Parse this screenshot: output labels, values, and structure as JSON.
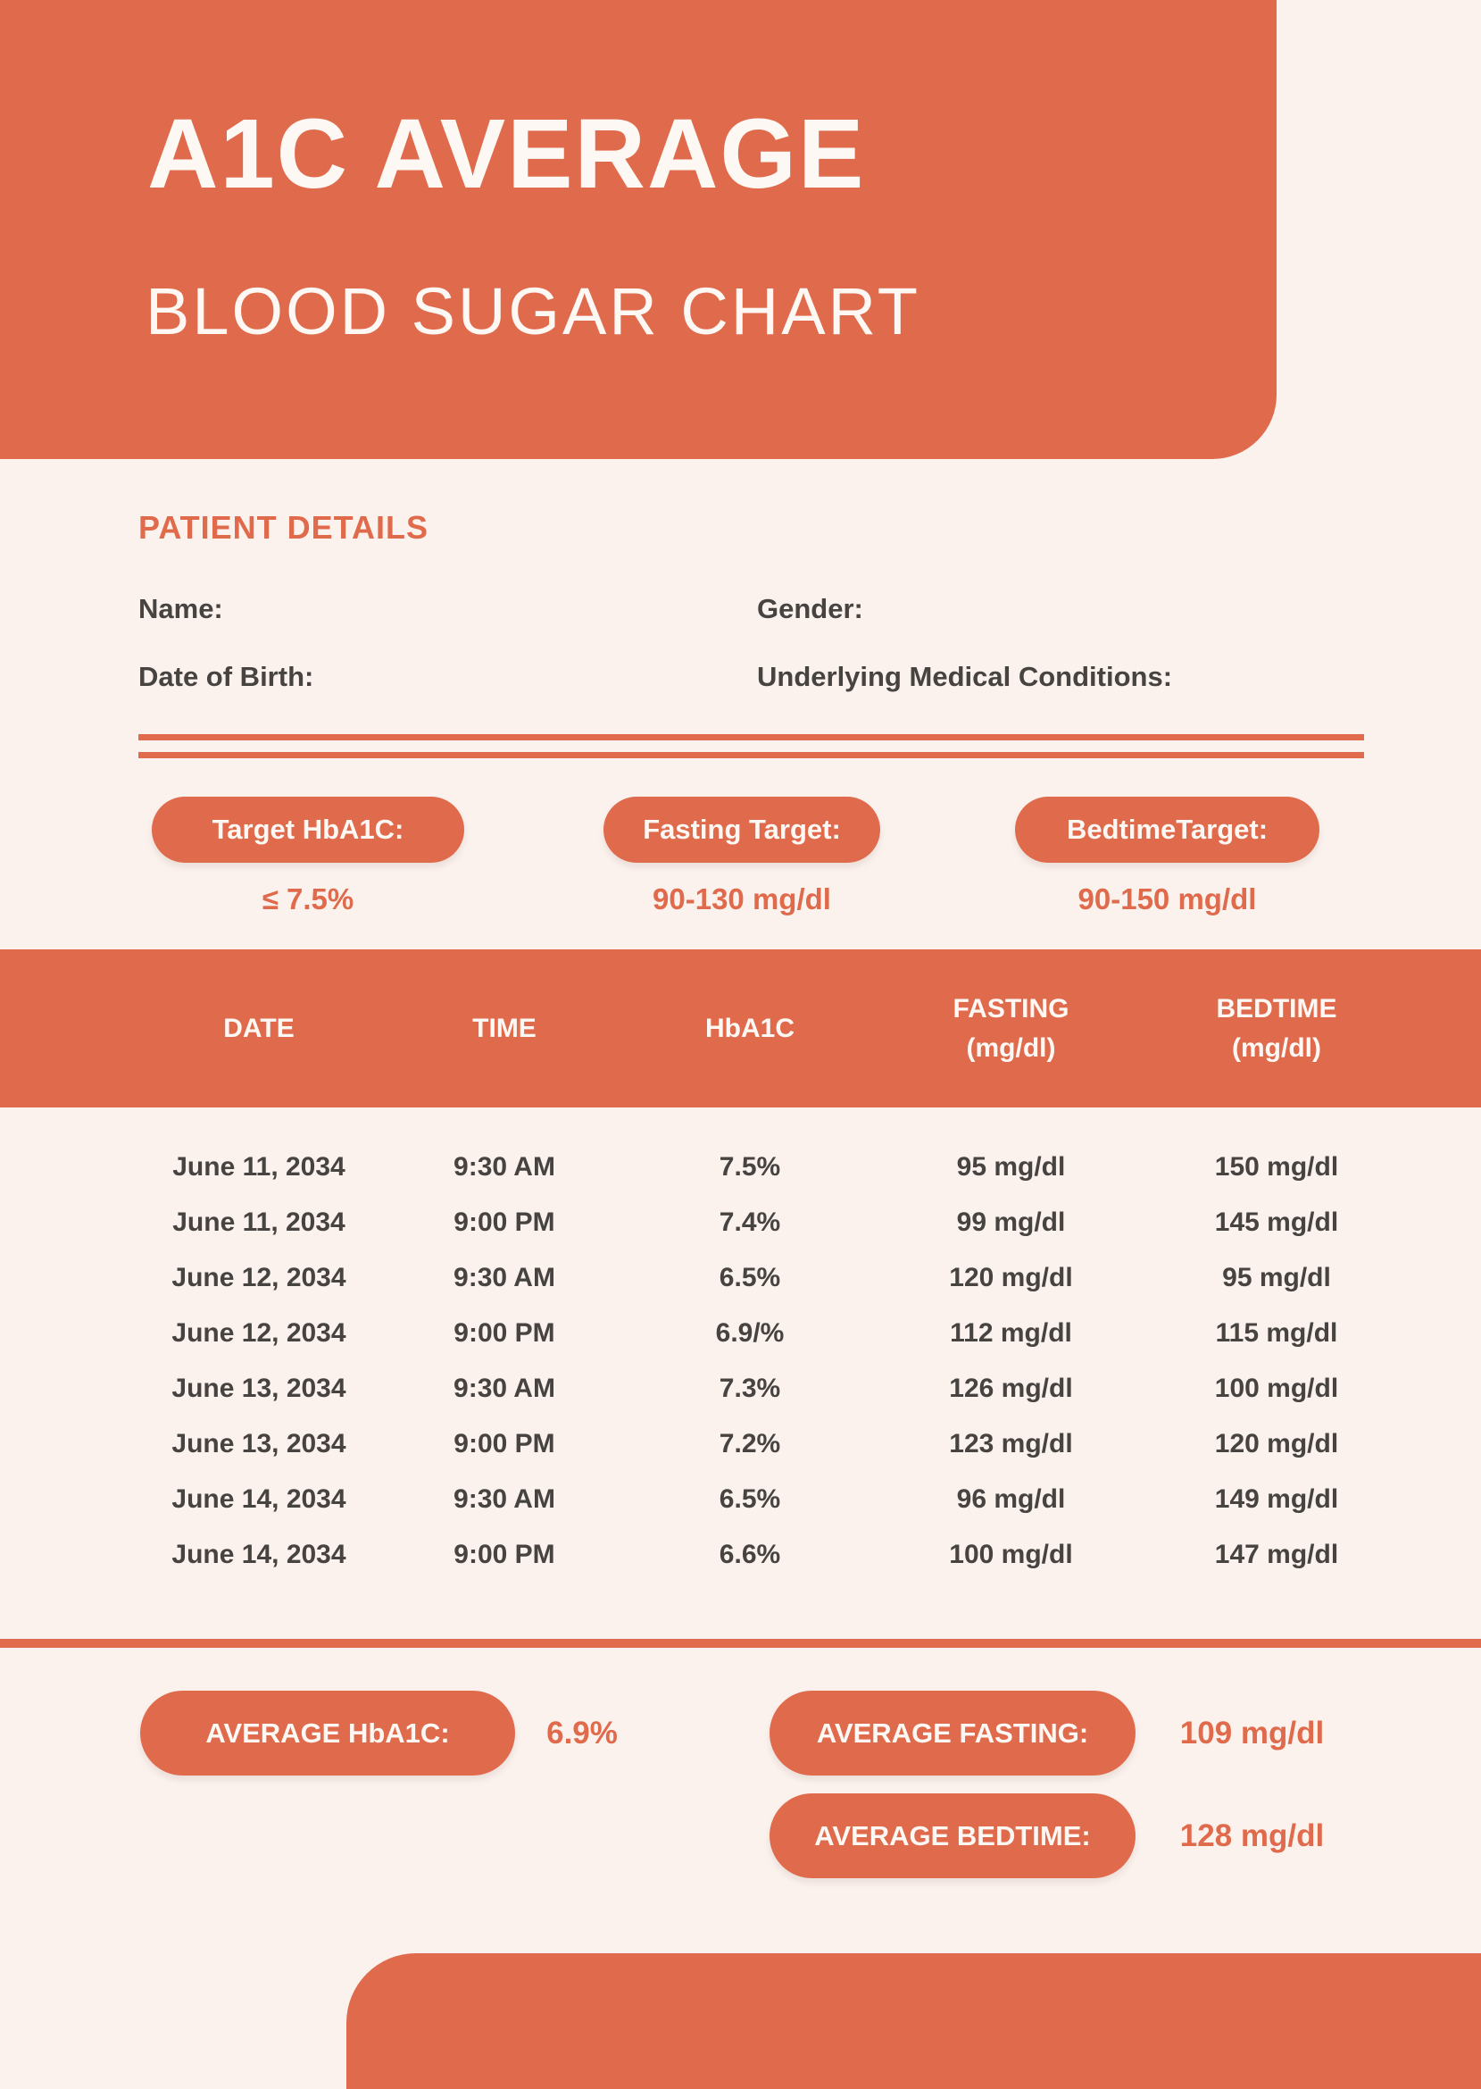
{
  "colors": {
    "accent": "#E06B4C",
    "background": "#FBF2EE",
    "text": "#464341",
    "pill_text": "#FDF8F4"
  },
  "header": {
    "title": "A1C AVERAGE",
    "subtitle": "BLOOD SUGAR CHART"
  },
  "patient": {
    "heading": "PATIENT DETAILS",
    "name_label": "Name:",
    "gender_label": "Gender:",
    "dob_label": "Date of Birth:",
    "conditions_label": "Underlying Medical Conditions:"
  },
  "targets": [
    {
      "label": "Target HbA1C:",
      "value": "≤ 7.5%"
    },
    {
      "label": "Fasting Target:",
      "value": "90-130 mg/dl"
    },
    {
      "label": "BedtimeTarget:",
      "value": "90-150 mg/dl"
    }
  ],
  "table": {
    "headers": [
      {
        "l1": "DATE",
        "l2": ""
      },
      {
        "l1": "TIME",
        "l2": ""
      },
      {
        "l1": "HbA1C",
        "l2": ""
      },
      {
        "l1": "FASTING",
        "l2": "(mg/dl)"
      },
      {
        "l1": "BEDTIME",
        "l2": "(mg/dl)"
      }
    ],
    "rows": [
      [
        "June 11, 2034",
        "9:30 AM",
        "7.5%",
        "95 mg/dl",
        "150 mg/dl"
      ],
      [
        "June 11, 2034",
        "9:00 PM",
        "7.4%",
        "99 mg/dl",
        "145 mg/dl"
      ],
      [
        "June 12, 2034",
        "9:30 AM",
        "6.5%",
        "120 mg/dl",
        "95 mg/dl"
      ],
      [
        "June 12, 2034",
        "9:00 PM",
        "6.9/%",
        "112 mg/dl",
        "115 mg/dl"
      ],
      [
        "June 13, 2034",
        "9:30 AM",
        "7.3%",
        "126 mg/dl",
        "100 mg/dl"
      ],
      [
        "June 13, 2034",
        "9:00 PM",
        "7.2%",
        "123 mg/dl",
        "120 mg/dl"
      ],
      [
        "June 14, 2034",
        "9:30 AM",
        "6.5%",
        "96 mg/dl",
        "149 mg/dl"
      ],
      [
        "June 14, 2034",
        "9:00 PM",
        "6.6%",
        "100 mg/dl",
        "147 mg/dl"
      ]
    ]
  },
  "averages": [
    {
      "label": "AVERAGE HbA1C:",
      "value": "6.9%"
    },
    {
      "label": "AVERAGE FASTING:",
      "value": "109 mg/dl"
    },
    {
      "label": "AVERAGE BEDTIME:",
      "value": "128 mg/dl"
    }
  ]
}
